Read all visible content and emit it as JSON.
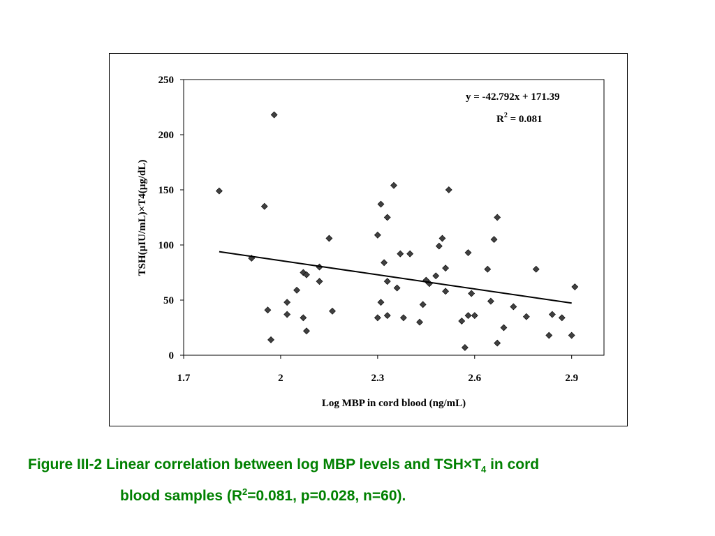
{
  "colors": {
    "caption": "#008000",
    "marker": "#404040",
    "axis": "#000000"
  },
  "chart_data": {
    "type": "scatter",
    "xlabel": "Log MBP in cord blood (ng/mL)",
    "ylabel": "TSH(µIU/mL)×T4(µg/dL)",
    "xlim": [
      1.7,
      3.0
    ],
    "ylim": [
      0,
      250
    ],
    "xticks": [
      1.7,
      2,
      2.3,
      2.6,
      2.9
    ],
    "xtick_labels": [
      "1.7",
      "2",
      "2.3",
      "2.6",
      "2.9"
    ],
    "yticks": [
      0,
      50,
      100,
      150,
      200,
      250
    ],
    "ytick_labels": [
      "0",
      "50",
      "100",
      "150",
      "200",
      "250"
    ],
    "grid": false,
    "marker": "diamond",
    "equation": "y = -42.792x + 171.39",
    "r2_label": "R",
    "r2_sup": "2",
    "r2_value": " = 0.081",
    "trendline": {
      "slope": -42.792,
      "intercept": 171.39,
      "x_start": 1.81,
      "x_end": 2.9
    },
    "points": [
      [
        1.81,
        149
      ],
      [
        1.91,
        88
      ],
      [
        1.95,
        135
      ],
      [
        1.96,
        41
      ],
      [
        1.97,
        14
      ],
      [
        1.98,
        218
      ],
      [
        2.02,
        37
      ],
      [
        2.02,
        48
      ],
      [
        2.05,
        59
      ],
      [
        2.07,
        34
      ],
      [
        2.07,
        75
      ],
      [
        2.08,
        73
      ],
      [
        2.08,
        22
      ],
      [
        2.12,
        80
      ],
      [
        2.12,
        67
      ],
      [
        2.15,
        106
      ],
      [
        2.16,
        40
      ],
      [
        2.3,
        109
      ],
      [
        2.3,
        34
      ],
      [
        2.31,
        137
      ],
      [
        2.31,
        48
      ],
      [
        2.32,
        84
      ],
      [
        2.33,
        125
      ],
      [
        2.33,
        67
      ],
      [
        2.33,
        36
      ],
      [
        2.35,
        154
      ],
      [
        2.36,
        61
      ],
      [
        2.37,
        92
      ],
      [
        2.38,
        34
      ],
      [
        2.4,
        92
      ],
      [
        2.43,
        30
      ],
      [
        2.44,
        46
      ],
      [
        2.45,
        68
      ],
      [
        2.46,
        65
      ],
      [
        2.48,
        72
      ],
      [
        2.49,
        99
      ],
      [
        2.5,
        106
      ],
      [
        2.51,
        79
      ],
      [
        2.51,
        58
      ],
      [
        2.52,
        150
      ],
      [
        2.56,
        31
      ],
      [
        2.57,
        7
      ],
      [
        2.58,
        93
      ],
      [
        2.58,
        36
      ],
      [
        2.59,
        56
      ],
      [
        2.6,
        36
      ],
      [
        2.64,
        78
      ],
      [
        2.65,
        49
      ],
      [
        2.66,
        105
      ],
      [
        2.67,
        125
      ],
      [
        2.67,
        11
      ],
      [
        2.69,
        25
      ],
      [
        2.72,
        44
      ],
      [
        2.76,
        35
      ],
      [
        2.79,
        78
      ],
      [
        2.83,
        18
      ],
      [
        2.84,
        37
      ],
      [
        2.87,
        34
      ],
      [
        2.9,
        18
      ],
      [
        2.91,
        62
      ]
    ]
  },
  "caption": {
    "line1_a": "Figure III-2 Linear correlation between log MBP levels and TSH",
    "line1_times": "×",
    "line1_t": "T",
    "line1_sub": "4",
    "line1_b": " in cord",
    "line2_a": "blood samples (R",
    "line2_sup": "2",
    "line2_b": "=0.081, p=0.028, n=60)."
  }
}
